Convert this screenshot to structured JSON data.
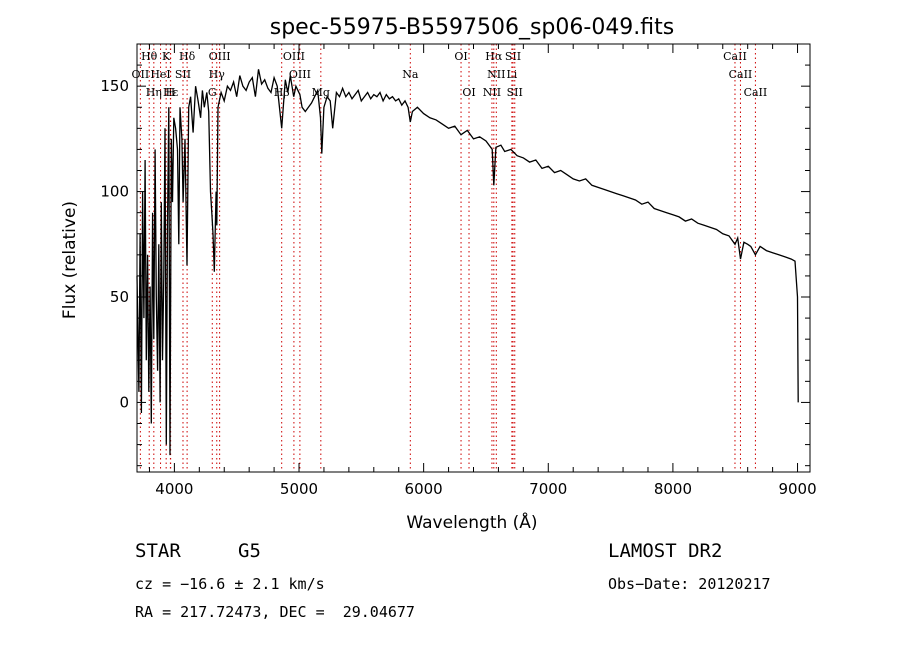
{
  "chart_data": {
    "type": "line",
    "title": "spec-55975-B5597506_sp06-049.fits",
    "xlabel": "Wavelength (Å)",
    "ylabel": "Flux (relative)",
    "xlim": [
      3700,
      9100
    ],
    "ylim": [
      -33,
      170
    ],
    "x_ticks": [
      4000,
      5000,
      6000,
      7000,
      8000,
      9000
    ],
    "y_ticks": [
      0,
      50,
      100,
      150
    ],
    "grid": false,
    "line_color": "#000000",
    "marker_color": "#cc0000",
    "series": [
      {
        "points": [
          [
            3700,
            60
          ],
          [
            3715,
            5
          ],
          [
            3725,
            80
          ],
          [
            3735,
            -5
          ],
          [
            3745,
            100
          ],
          [
            3755,
            40
          ],
          [
            3765,
            115
          ],
          [
            3775,
            20
          ],
          [
            3785,
            70
          ],
          [
            3795,
            5
          ],
          [
            3805,
            55
          ],
          [
            3815,
            -10
          ],
          [
            3825,
            90
          ],
          [
            3835,
            30
          ],
          [
            3845,
            120
          ],
          [
            3855,
            50
          ],
          [
            3865,
            15
          ],
          [
            3875,
            75
          ],
          [
            3885,
            0
          ],
          [
            3895,
            95
          ],
          [
            3905,
            20
          ],
          [
            3915,
            60
          ],
          [
            3925,
            130
          ],
          [
            3935,
            -20
          ],
          [
            3945,
            85
          ],
          [
            3955,
            140
          ],
          [
            3965,
            -25
          ],
          [
            3975,
            125
          ],
          [
            3985,
            95
          ],
          [
            3995,
            135
          ],
          [
            4010,
            130
          ],
          [
            4025,
            120
          ],
          [
            4035,
            75
          ],
          [
            4045,
            140
          ],
          [
            4060,
            125
          ],
          [
            4070,
            95
          ],
          [
            4085,
            125
          ],
          [
            4101,
            65
          ],
          [
            4115,
            140
          ],
          [
            4130,
            145
          ],
          [
            4150,
            128
          ],
          [
            4170,
            150
          ],
          [
            4190,
            143
          ],
          [
            4210,
            135
          ],
          [
            4225,
            148
          ],
          [
            4240,
            140
          ],
          [
            4260,
            147
          ],
          [
            4275,
            138
          ],
          [
            4290,
            100
          ],
          [
            4300,
            90
          ],
          [
            4310,
            80
          ],
          [
            4320,
            62
          ],
          [
            4335,
            100
          ],
          [
            4340,
            84
          ],
          [
            4350,
            140
          ],
          [
            4375,
            147
          ],
          [
            4400,
            143
          ],
          [
            4425,
            150
          ],
          [
            4450,
            148
          ],
          [
            4475,
            152
          ],
          [
            4500,
            145
          ],
          [
            4525,
            155
          ],
          [
            4550,
            150
          ],
          [
            4575,
            148
          ],
          [
            4600,
            152
          ],
          [
            4625,
            154
          ],
          [
            4650,
            145
          ],
          [
            4675,
            158
          ],
          [
            4700,
            151
          ],
          [
            4725,
            153
          ],
          [
            4750,
            149
          ],
          [
            4775,
            147
          ],
          [
            4800,
            154
          ],
          [
            4825,
            150
          ],
          [
            4861,
            130
          ],
          [
            4890,
            153
          ],
          [
            4910,
            147
          ],
          [
            4930,
            155
          ],
          [
            4957,
            145
          ],
          [
            4975,
            150
          ],
          [
            5007,
            146
          ],
          [
            5025,
            140
          ],
          [
            5050,
            138
          ],
          [
            5075,
            140
          ],
          [
            5100,
            142
          ],
          [
            5125,
            145
          ],
          [
            5150,
            148
          ],
          [
            5172,
            135
          ],
          [
            5183,
            118
          ],
          [
            5200,
            140
          ],
          [
            5225,
            145
          ],
          [
            5250,
            143
          ],
          [
            5270,
            130
          ],
          [
            5300,
            147
          ],
          [
            5325,
            145
          ],
          [
            5350,
            149
          ],
          [
            5375,
            145
          ],
          [
            5400,
            147
          ],
          [
            5425,
            144
          ],
          [
            5450,
            146
          ],
          [
            5475,
            148
          ],
          [
            5500,
            143
          ],
          [
            5525,
            145
          ],
          [
            5550,
            147
          ],
          [
            5575,
            144
          ],
          [
            5600,
            146
          ],
          [
            5625,
            145
          ],
          [
            5650,
            147
          ],
          [
            5675,
            143
          ],
          [
            5700,
            146
          ],
          [
            5725,
            144
          ],
          [
            5750,
            145
          ],
          [
            5775,
            143
          ],
          [
            5800,
            144
          ],
          [
            5825,
            141
          ],
          [
            5850,
            143
          ],
          [
            5875,
            140
          ],
          [
            5893,
            133
          ],
          [
            5910,
            138
          ],
          [
            5950,
            140
          ],
          [
            6000,
            137
          ],
          [
            6050,
            135
          ],
          [
            6100,
            134
          ],
          [
            6150,
            132
          ],
          [
            6200,
            130
          ],
          [
            6250,
            131
          ],
          [
            6300,
            127
          ],
          [
            6350,
            129
          ],
          [
            6400,
            125
          ],
          [
            6450,
            126
          ],
          [
            6500,
            124
          ],
          [
            6550,
            120
          ],
          [
            6563,
            103
          ],
          [
            6580,
            121
          ],
          [
            6620,
            122
          ],
          [
            6650,
            119
          ],
          [
            6700,
            120
          ],
          [
            6750,
            117
          ],
          [
            6800,
            116
          ],
          [
            6850,
            114
          ],
          [
            6900,
            115
          ],
          [
            6950,
            111
          ],
          [
            7000,
            112
          ],
          [
            7050,
            109
          ],
          [
            7100,
            110
          ],
          [
            7150,
            108
          ],
          [
            7200,
            106
          ],
          [
            7250,
            105
          ],
          [
            7300,
            106
          ],
          [
            7350,
            103
          ],
          [
            7400,
            102
          ],
          [
            7450,
            101
          ],
          [
            7500,
            100
          ],
          [
            7550,
            99
          ],
          [
            7600,
            98
          ],
          [
            7650,
            97
          ],
          [
            7700,
            96
          ],
          [
            7750,
            94
          ],
          [
            7800,
            95
          ],
          [
            7850,
            92
          ],
          [
            7900,
            91
          ],
          [
            7950,
            90
          ],
          [
            8000,
            89
          ],
          [
            8050,
            88
          ],
          [
            8100,
            86
          ],
          [
            8150,
            87
          ],
          [
            8200,
            85
          ],
          [
            8250,
            84
          ],
          [
            8300,
            83
          ],
          [
            8350,
            82
          ],
          [
            8400,
            80
          ],
          [
            8450,
            79
          ],
          [
            8498,
            75
          ],
          [
            8520,
            78
          ],
          [
            8542,
            68
          ],
          [
            8570,
            76
          ],
          [
            8600,
            75
          ],
          [
            8625,
            74
          ],
          [
            8662,
            70
          ],
          [
            8700,
            74
          ],
          [
            8750,
            72
          ],
          [
            8800,
            71
          ],
          [
            8850,
            70
          ],
          [
            8900,
            69
          ],
          [
            8950,
            68
          ],
          [
            8980,
            67
          ],
          [
            9000,
            50
          ],
          [
            9005,
            0
          ]
        ]
      }
    ],
    "lines": [
      {
        "name": "Hθ",
        "wavelength": 3798,
        "row": 0
      },
      {
        "name": "K",
        "wavelength": 3934,
        "row": 0
      },
      {
        "name": "Hδ",
        "wavelength": 4102,
        "row": 0
      },
      {
        "name": "OIII",
        "wavelength": 4363,
        "row": 0
      },
      {
        "name": "OIII",
        "wavelength": 4959,
        "row": 0
      },
      {
        "name": "OI",
        "wavelength": 6300,
        "row": 0
      },
      {
        "name": "Hα",
        "wavelength": 6563,
        "row": 0
      },
      {
        "name": "SII",
        "wavelength": 6717,
        "row": 0
      },
      {
        "name": "CaII",
        "wavelength": 8498,
        "row": 0
      },
      {
        "name": "OII",
        "wavelength": 3727,
        "row": 1
      },
      {
        "name": "HeI",
        "wavelength": 3889,
        "row": 1
      },
      {
        "name": "SII",
        "wavelength": 4069,
        "row": 1
      },
      {
        "name": "Hγ",
        "wavelength": 4340,
        "row": 1
      },
      {
        "name": "OIII",
        "wavelength": 5007,
        "row": 1
      },
      {
        "name": "Na",
        "wavelength": 5893,
        "row": 1
      },
      {
        "name": "NII",
        "wavelength": 6583,
        "row": 1
      },
      {
        "name": "Li",
        "wavelength": 6708,
        "row": 1
      },
      {
        "name": "CaII",
        "wavelength": 8542,
        "row": 1
      },
      {
        "name": "Hε",
        "wavelength": 3970,
        "row": 2
      },
      {
        "name": "Hη",
        "wavelength": 3835,
        "row": 2
      },
      {
        "name": "H",
        "wavelength": 3968,
        "row": 2
      },
      {
        "name": "G",
        "wavelength": 4304,
        "row": 2
      },
      {
        "name": "Hβ",
        "wavelength": 4861,
        "row": 2
      },
      {
        "name": "Mg",
        "wavelength": 5175,
        "row": 2
      },
      {
        "name": "OI",
        "wavelength": 6364,
        "row": 2
      },
      {
        "name": "NII",
        "wavelength": 6548,
        "row": 2
      },
      {
        "name": "SII",
        "wavelength": 6731,
        "row": 2
      },
      {
        "name": "CaII",
        "wavelength": 8662,
        "row": 2
      }
    ]
  },
  "info": {
    "object_class": "STAR",
    "subclass": "G5",
    "survey": "LAMOST DR2",
    "cz": "cz = −16.6 ± 2.1 km/s",
    "obs_date": "Obs−Date: 20120217",
    "coords": "RA = 217.72473, DEC =  29.04677"
  }
}
